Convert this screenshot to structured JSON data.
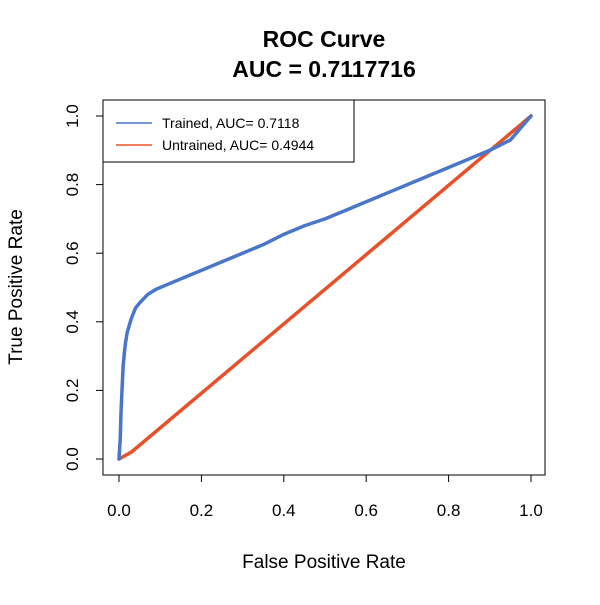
{
  "chart_data": {
    "type": "line",
    "title": "ROC Curve",
    "subtitle": "AUC = 0.7117716",
    "xlabel": "False Positive Rate",
    "ylabel": "True Positive Rate",
    "xlim": [
      0,
      1
    ],
    "ylim": [
      0,
      1
    ],
    "xticks": [
      "0.0",
      "0.2",
      "0.4",
      "0.6",
      "0.8",
      "1.0"
    ],
    "yticks": [
      "0.0",
      "0.2",
      "0.4",
      "0.6",
      "0.8",
      "1.0"
    ],
    "grid": false,
    "legend_position": "top-left",
    "series": [
      {
        "name": "Trained, AUC= 0.7118",
        "color": "#4a76c9",
        "x": [
          0,
          0.003,
          0.005,
          0.008,
          0.01,
          0.013,
          0.016,
          0.02,
          0.025,
          0.03,
          0.04,
          0.05,
          0.07,
          0.09,
          0.12,
          0.15,
          0.2,
          0.25,
          0.3,
          0.35,
          0.4,
          0.45,
          0.5,
          0.55,
          0.6,
          0.65,
          0.7,
          0.75,
          0.8,
          0.85,
          0.9,
          0.95,
          1.0
        ],
        "y": [
          0,
          0.06,
          0.14,
          0.22,
          0.27,
          0.31,
          0.34,
          0.37,
          0.39,
          0.41,
          0.44,
          0.455,
          0.48,
          0.495,
          0.51,
          0.525,
          0.55,
          0.575,
          0.6,
          0.625,
          0.655,
          0.68,
          0.7,
          0.725,
          0.75,
          0.775,
          0.8,
          0.825,
          0.85,
          0.875,
          0.9,
          0.93,
          1.0
        ]
      },
      {
        "name": "Untrained, AUC= 0.4944",
        "color": "#e8502a",
        "x": [
          0,
          0.03,
          1.0
        ],
        "y": [
          0,
          0.02,
          1.0
        ]
      }
    ]
  }
}
